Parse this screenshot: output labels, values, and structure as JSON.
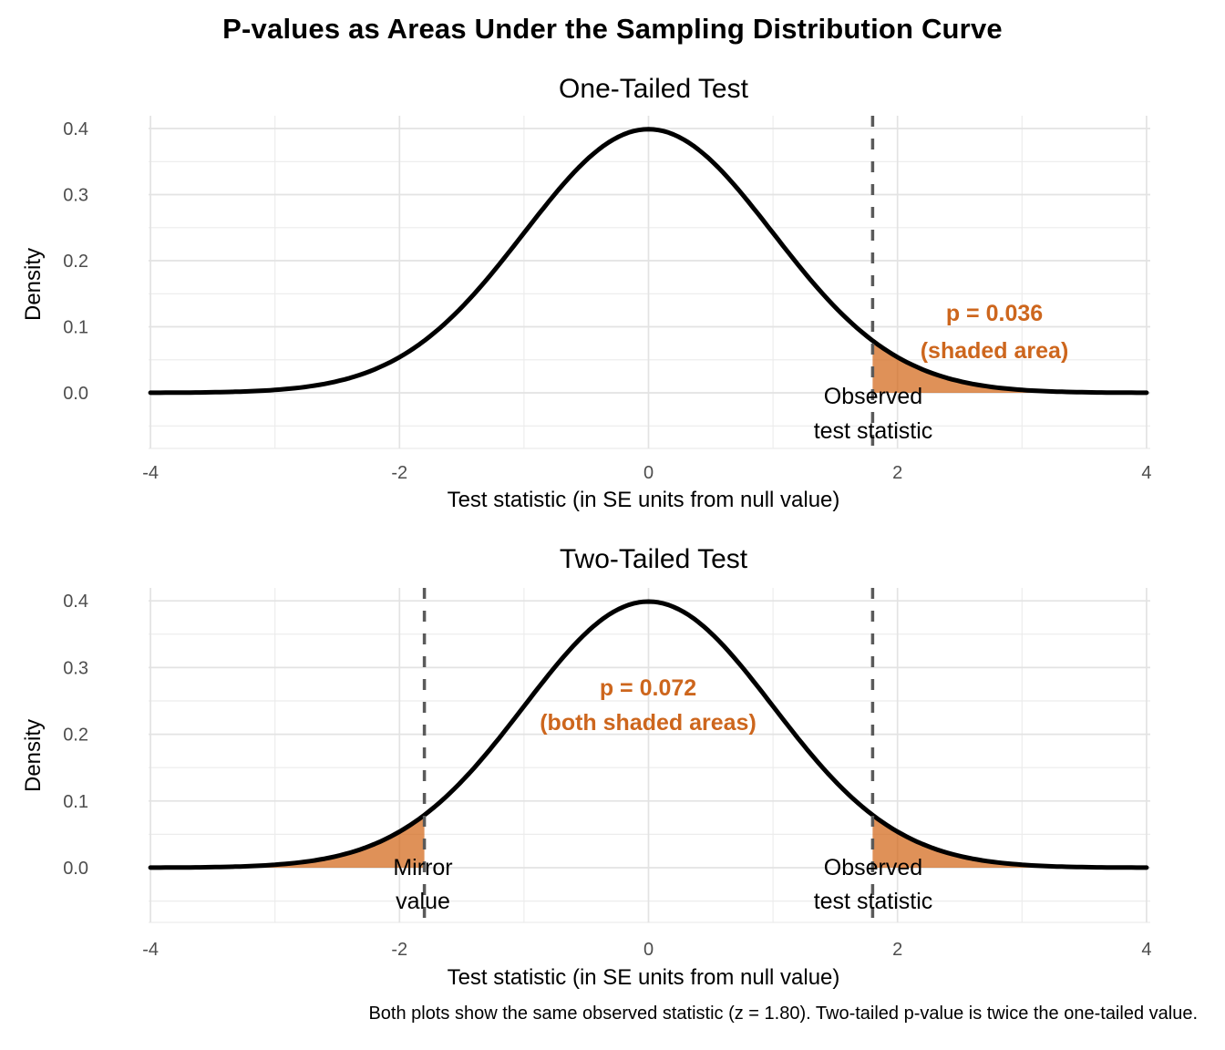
{
  "title": "P-values as Areas Under the Sampling Distribution Curve",
  "caption": "Both plots show the same observed statistic (z = 1.80). Two-tailed p-value is twice the one-tailed value.",
  "colors": {
    "background": "#FFFFFF",
    "curve": "#000000",
    "grid_major": "#E3E3E3",
    "grid_minor": "#ECECEC",
    "tick_label": "#4D4D4D",
    "axis_title": "#000000",
    "dashed_line": "#5A5A5A",
    "shade_fill": "rgba(211,103,24,0.72)",
    "annotation_text": "#CD661D",
    "vline_label_text": "#000000"
  },
  "chart_data": [
    {
      "type": "area",
      "title": "One-Tailed Test",
      "xlabel": "Test statistic (in SE units from null value)",
      "ylabel": "Density",
      "distribution": {
        "shape": "normal",
        "mean": 0,
        "sd": 1,
        "peak_density": 0.3989
      },
      "xlim": [
        -4,
        4
      ],
      "ylim": [
        0,
        0.4
      ],
      "x_ticks": [
        -4,
        -2,
        0,
        2,
        4
      ],
      "x_tick_labels": [
        "-4",
        "-2",
        "0",
        "2",
        "4"
      ],
      "x_minor": [
        -3,
        -1,
        1,
        3
      ],
      "y_ticks": [
        0,
        0.1,
        0.2,
        0.3,
        0.4
      ],
      "y_tick_labels": [
        "0.0",
        "0.1",
        "0.2",
        "0.3",
        "0.4"
      ],
      "y_minor": [
        -0.05,
        0.05,
        0.15,
        0.25,
        0.35
      ],
      "grid": true,
      "legend": "none",
      "observed_z": 1.8,
      "p_value": 0.036,
      "vlines": [
        1.8
      ],
      "shaded_regions": [
        [
          1.8,
          4
        ]
      ],
      "annotation_lines": [
        "p = 0.036",
        "(shaded area)"
      ],
      "vline_labels": [
        {
          "at": 1.8,
          "lines": [
            "Observed",
            "test statistic"
          ]
        }
      ]
    },
    {
      "type": "area",
      "title": "Two-Tailed Test",
      "xlabel": "Test statistic (in SE units from null value)",
      "ylabel": "Density",
      "distribution": {
        "shape": "normal",
        "mean": 0,
        "sd": 1,
        "peak_density": 0.3989
      },
      "xlim": [
        -4,
        4
      ],
      "ylim": [
        0,
        0.4
      ],
      "x_ticks": [
        -4,
        -2,
        0,
        2,
        4
      ],
      "x_tick_labels": [
        "-4",
        "-2",
        "0",
        "2",
        "4"
      ],
      "x_minor": [
        -3,
        -1,
        1,
        3
      ],
      "y_ticks": [
        0,
        0.1,
        0.2,
        0.3,
        0.4
      ],
      "y_tick_labels": [
        "0.0",
        "0.1",
        "0.2",
        "0.3",
        "0.4"
      ],
      "y_minor": [
        -0.05,
        0.05,
        0.15,
        0.25,
        0.35
      ],
      "grid": true,
      "legend": "none",
      "observed_z": 1.8,
      "p_value": 0.072,
      "vlines": [
        -1.8,
        1.8
      ],
      "shaded_regions": [
        [
          -4,
          -1.8
        ],
        [
          1.8,
          4
        ]
      ],
      "annotation_lines": [
        "p = 0.072",
        "(both shaded areas)"
      ],
      "vline_labels": [
        {
          "at": -1.8,
          "lines": [
            "Mirror",
            "value"
          ]
        },
        {
          "at": 1.8,
          "lines": [
            "Observed",
            "test statistic"
          ]
        }
      ]
    }
  ]
}
